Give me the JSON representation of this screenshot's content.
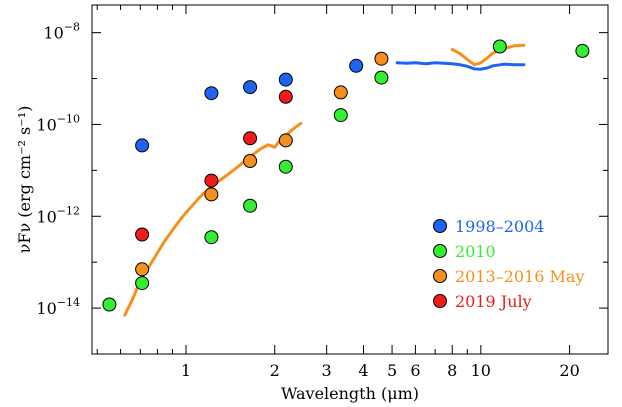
{
  "chart_data": {
    "type": "scatter",
    "title": "",
    "xlabel": "Wavelength (μm)",
    "ylabel": "νFν (erg cm⁻² s⁻¹)",
    "xscale": "log",
    "yscale": "log",
    "xlim": [
      0.48,
      27
    ],
    "ylim": [
      1e-15,
      4e-08
    ],
    "grid": false,
    "legend_position": "bottom-right",
    "x_ticks": [
      {
        "value": 1,
        "label": "1"
      },
      {
        "value": 2,
        "label": "2"
      },
      {
        "value": 3,
        "label": "3"
      },
      {
        "value": 4,
        "label": "4"
      },
      {
        "value": 5,
        "label": "5"
      },
      {
        "value": 6,
        "label": "6"
      },
      {
        "value": 8,
        "label": "8"
      },
      {
        "value": 10,
        "label": "10"
      },
      {
        "value": 20,
        "label": "20"
      }
    ],
    "x_minor_ticks": [
      0.5,
      0.6,
      0.7,
      0.8,
      0.9,
      7,
      9,
      30
    ],
    "y_ticks": [
      {
        "value": 1e-14,
        "base": "10",
        "exp": "−14"
      },
      {
        "value": 1e-12,
        "base": "10",
        "exp": "−12"
      },
      {
        "value": 1e-10,
        "base": "10",
        "exp": "−10"
      },
      {
        "value": 1e-08,
        "base": "10",
        "exp": "−8"
      }
    ],
    "series": [
      {
        "name": "1998–2004",
        "color": "#1e64f0",
        "points": [
          {
            "x": 0.71,
            "y": 3.5e-11
          },
          {
            "x": 1.22,
            "y": 4.8e-10
          },
          {
            "x": 1.65,
            "y": 6.5e-10
          },
          {
            "x": 2.18,
            "y": 9.5e-10
          },
          {
            "x": 3.78,
            "y": 1.9e-09
          }
        ],
        "lines": [
          {
            "x": [
              5.2,
              5.6,
              6.0,
              6.5,
              7.0,
              7.5,
              8.0,
              8.5,
              9.0,
              9.5,
              10.0,
              10.5,
              11.0,
              12.0,
              13.0,
              14.0
            ],
            "y": [
              2.2e-09,
              2.15e-09,
              2.2e-09,
              2.1e-09,
              2.2e-09,
              2.15e-09,
              2.1e-09,
              2e-09,
              1.85e-09,
              1.62e-09,
              1.6e-09,
              1.7e-09,
              1.9e-09,
              2.05e-09,
              2e-09,
              2e-09
            ]
          }
        ]
      },
      {
        "name": "2010",
        "color": "#33ee33",
        "points": [
          {
            "x": 0.55,
            "y": 1.2e-14
          },
          {
            "x": 0.71,
            "y": 3.5e-14
          },
          {
            "x": 1.22,
            "y": 3.5e-13
          },
          {
            "x": 1.65,
            "y": 1.7e-12
          },
          {
            "x": 2.18,
            "y": 1.2e-11
          },
          {
            "x": 3.35,
            "y": 1.6e-10
          },
          {
            "x": 4.6,
            "y": 1.05e-09
          },
          {
            "x": 11.6,
            "y": 5e-09
          },
          {
            "x": 22.1,
            "y": 4e-09
          }
        ]
      },
      {
        "name": "2013–2016 May",
        "color": "#f5901e",
        "points": [
          {
            "x": 0.71,
            "y": 7e-14
          },
          {
            "x": 1.22,
            "y": 3e-12
          },
          {
            "x": 1.65,
            "y": 1.6e-11
          },
          {
            "x": 2.18,
            "y": 4.5e-11
          },
          {
            "x": 3.35,
            "y": 5e-10
          },
          {
            "x": 4.6,
            "y": 2.7e-09
          }
        ],
        "lines": [
          {
            "x": [
              0.62,
              0.66,
              0.7,
              0.75,
              0.8,
              0.85,
              0.9,
              0.95,
              1.0,
              1.05,
              1.1,
              1.15,
              1.2,
              1.3,
              1.4,
              1.5,
              1.6,
              1.7,
              1.8,
              1.9,
              2.0,
              2.1,
              2.2,
              2.3,
              2.45
            ],
            "y": [
              7e-15,
              1.6e-14,
              4e-14,
              8e-14,
              1.6e-13,
              3e-13,
              5e-13,
              8e-13,
              1.2e-12,
              1.7e-12,
              2.4e-12,
              3.2e-12,
              4e-12,
              6e-12,
              8.5e-12,
              1.2e-11,
              1.7e-11,
              2.3e-11,
              3e-11,
              3.6e-11,
              3.2e-11,
              4.8e-11,
              6e-11,
              7.8e-11,
              1.05e-10
            ]
          },
          {
            "x": [
              8.0,
              8.5,
              9.0,
              9.5,
              10.0,
              10.5,
              11.0,
              12.0,
              13.0,
              14.0
            ],
            "y": [
              4.3e-09,
              3.5e-09,
              2.6e-09,
              2e-09,
              2.2e-09,
              2.8e-09,
              3.6e-09,
              4.5e-09,
              5.2e-09,
              5.3e-09
            ]
          }
        ]
      },
      {
        "name": "2019 July",
        "color": "#ee1c1c",
        "points": [
          {
            "x": 0.71,
            "y": 4e-13
          },
          {
            "x": 1.22,
            "y": 6e-12
          },
          {
            "x": 1.65,
            "y": 5e-11
          },
          {
            "x": 2.18,
            "y": 4e-10
          }
        ]
      }
    ]
  }
}
